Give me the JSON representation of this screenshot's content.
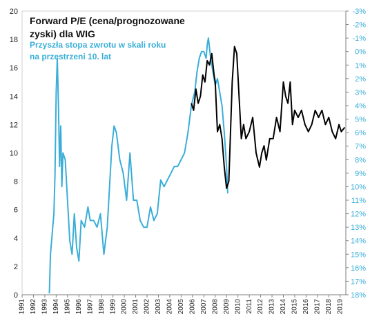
{
  "chart_data": {
    "type": "line",
    "title_lines": [
      "Forward P/E (cena/prognozowane",
      "zyski) dla WIG"
    ],
    "legend_lines": [
      "Przyszła stopa zwrotu w skali roku",
      "na przestrzeni 10. lat"
    ],
    "legend_color": "#3aaed8",
    "pe_color": "#000000",
    "left_axis": {
      "min": 0,
      "max": 20,
      "ticks": [
        "0",
        "2",
        "4",
        "6",
        "8",
        "10",
        "12",
        "14",
        "16",
        "18",
        "20"
      ]
    },
    "right_axis": {
      "reversed": true,
      "min": -3,
      "max": 18,
      "ticks": [
        "-3%",
        "-2%",
        "-1%",
        "0%",
        "1%",
        "2%",
        "3%",
        "4%",
        "5%",
        "6%",
        "7%",
        "8%",
        "9%",
        "10%",
        "11%",
        "12%",
        "13%",
        "14%",
        "15%",
        "16%",
        "17%",
        "18%"
      ]
    },
    "x_axis": {
      "min": 1991,
      "max": 2019.5,
      "ticks": [
        "1991",
        "1992",
        "1993",
        "1994",
        "1995",
        "1996",
        "1997",
        "1998",
        "1999",
        "2000",
        "2001",
        "2002",
        "2003",
        "2004",
        "2005",
        "2006",
        "2007",
        "2008",
        "2009",
        "2010",
        "2011",
        "2012",
        "2013",
        "2014",
        "2015",
        "2016",
        "2017",
        "2018",
        "2019"
      ]
    },
    "series": [
      {
        "axis": "right",
        "x": [
          1993.4,
          1993.5,
          1993.6,
          1993.7,
          1993.8,
          1993.9,
          1994.0,
          1994.1,
          1994.2,
          1994.3,
          1994.4,
          1994.5,
          1994.6,
          1994.8,
          1995.0,
          1995.2,
          1995.4,
          1995.6,
          1995.8,
          1996.0,
          1996.2,
          1996.5,
          1996.8,
          1997.0,
          1997.3,
          1997.6,
          1997.9,
          1998.2,
          1998.5,
          1998.7,
          1998.9,
          1999.1,
          1999.3,
          1999.6,
          1999.9,
          2000.2,
          2000.5,
          2000.8,
          2001.1,
          2001.4,
          2001.7,
          2002.0,
          2002.3,
          2002.6,
          2002.9,
          2003.2,
          2003.5,
          2003.8,
          2004.1,
          2004.4,
          2004.7,
          2005.0,
          2005.3,
          2005.6,
          2005.9,
          2006.2,
          2006.4,
          2006.6,
          2006.8,
          2007.0,
          2007.2,
          2007.3,
          2007.4,
          2007.6,
          2007.8,
          2008.0,
          2008.2,
          2008.4,
          2008.6,
          2008.8,
          2009.0,
          2009.1
        ],
        "y": [
          17.9,
          15.0,
          14.0,
          13.0,
          12.0,
          9.0,
          3.0,
          0.5,
          4.0,
          8.5,
          5.5,
          10.0,
          7.5,
          8.0,
          11.0,
          14.0,
          15.0,
          12.0,
          14.5,
          15.5,
          12.5,
          13.0,
          11.5,
          12.5,
          12.5,
          13.0,
          12.0,
          15.0,
          13.0,
          10.0,
          7.0,
          5.5,
          6.0,
          8.0,
          9.0,
          11.0,
          7.5,
          11.0,
          11.0,
          12.5,
          13.0,
          13.0,
          11.5,
          12.5,
          12.0,
          9.5,
          10.0,
          9.5,
          9.0,
          8.5,
          8.5,
          8.0,
          7.5,
          6.0,
          4.0,
          3.0,
          1.5,
          0.5,
          0.0,
          0.0,
          0.5,
          -0.5,
          -1.0,
          0.5,
          1.5,
          2.5,
          2.0,
          3.0,
          4.0,
          6.0,
          8.5,
          10.5
        ]
      },
      {
        "axis": "left",
        "x": [
          2005.9,
          2006.1,
          2006.3,
          2006.5,
          2006.7,
          2006.9,
          2007.1,
          2007.3,
          2007.5,
          2007.7,
          2007.9,
          2008.0,
          2008.2,
          2008.4,
          2008.6,
          2008.8,
          2009.0,
          2009.2,
          2009.5,
          2009.7,
          2009.9,
          2010.1,
          2010.3,
          2010.5,
          2010.7,
          2011.0,
          2011.3,
          2011.6,
          2011.9,
          2012.1,
          2012.3,
          2012.5,
          2012.8,
          2013.1,
          2013.4,
          2013.7,
          2014.0,
          2014.2,
          2014.4,
          2014.6,
          2014.8,
          2015.0,
          2015.3,
          2015.6,
          2015.9,
          2016.2,
          2016.5,
          2016.8,
          2017.1,
          2017.4,
          2017.7,
          2018.0,
          2018.3,
          2018.6,
          2018.9,
          2019.1,
          2019.4
        ],
        "y": [
          13.5,
          13.0,
          14.5,
          13.5,
          14.0,
          15.5,
          15.0,
          16.5,
          16.2,
          17.0,
          15.5,
          15.0,
          11.5,
          12.0,
          11.0,
          9.0,
          7.5,
          8.0,
          15.0,
          17.5,
          17.0,
          14.0,
          11.0,
          12.0,
          11.0,
          11.5,
          12.5,
          10.0,
          9.0,
          10.0,
          10.5,
          9.5,
          11.0,
          11.0,
          12.5,
          11.5,
          15.0,
          14.0,
          13.5,
          15.0,
          12.0,
          13.0,
          12.5,
          13.0,
          12.0,
          11.5,
          12.0,
          13.0,
          12.5,
          13.0,
          12.0,
          12.5,
          11.5,
          11.0,
          12.0,
          11.5,
          11.8
        ]
      }
    ]
  }
}
